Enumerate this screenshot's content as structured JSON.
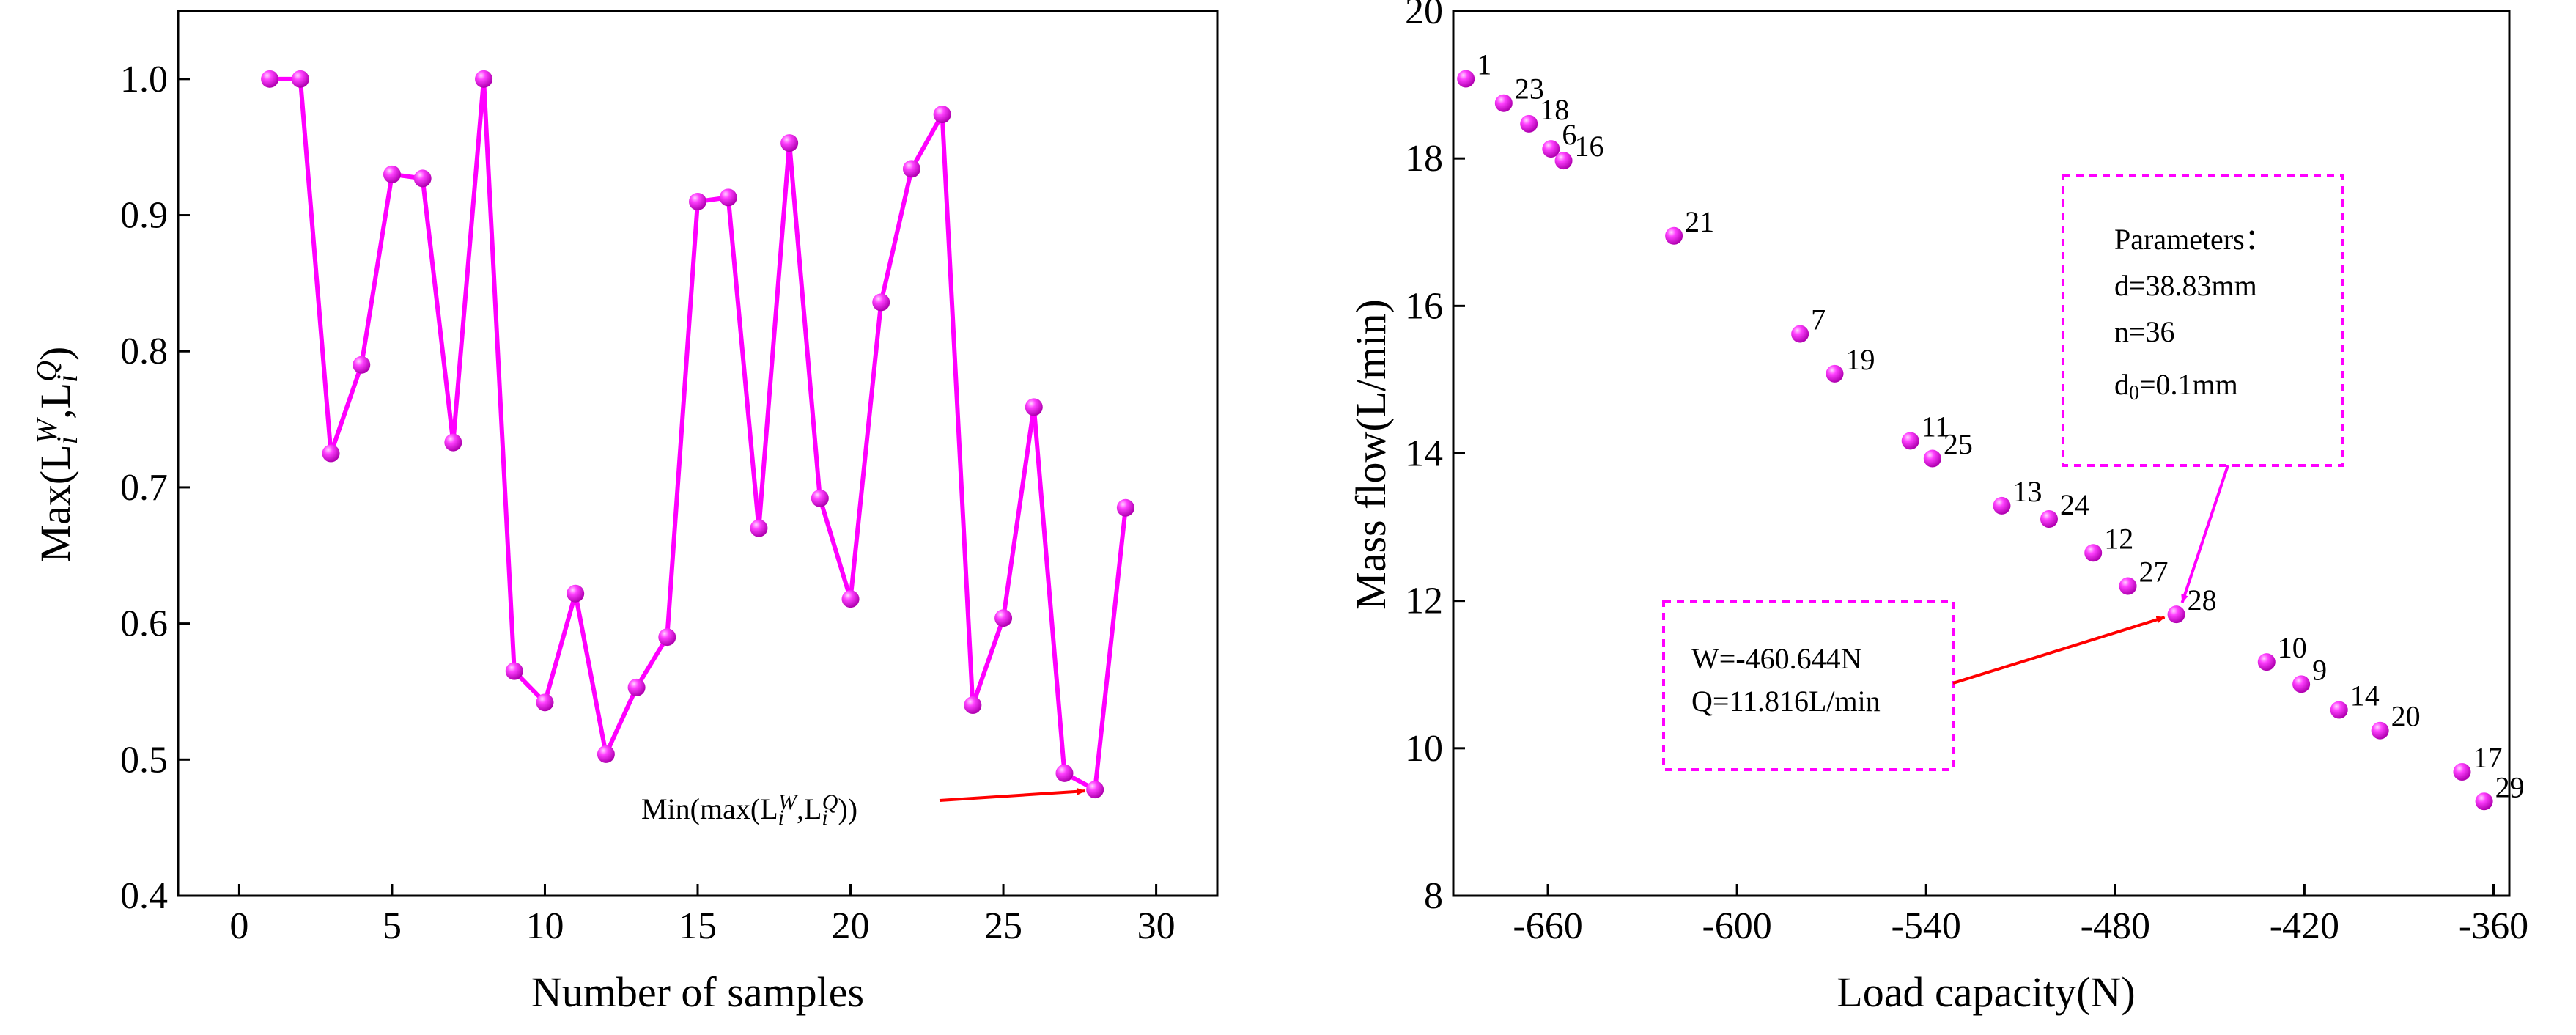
{
  "chart_data": [
    {
      "type": "line",
      "xlabel": "Number of samples",
      "ylabel": {
        "base": "Max(L",
        "sub1": "i",
        "sup1": "W",
        "mid": ",L",
        "sub2": "i",
        "sup2": "Q",
        "end": ")"
      },
      "xlim": [
        -2,
        32
      ],
      "ylim": [
        0.4,
        1.05
      ],
      "xticks": [
        0,
        5,
        10,
        15,
        20,
        25,
        30
      ],
      "yticks": [
        0.4,
        0.5,
        0.6,
        0.7,
        0.8,
        0.9,
        1.0
      ],
      "ytick_labels": [
        "0.4",
        "0.5",
        "0.6",
        "0.7",
        "0.8",
        "0.9",
        "1.0"
      ],
      "color": "#ff00ff",
      "series": [
        {
          "x": [
            1,
            2,
            3,
            4,
            5,
            6,
            7,
            8,
            9,
            10,
            11,
            12,
            13,
            14,
            15,
            16,
            17,
            18,
            19,
            20,
            21,
            22,
            23,
            24,
            25,
            26,
            27,
            28,
            29
          ],
          "y": [
            1.0,
            1.0,
            0.725,
            0.79,
            0.93,
            0.927,
            0.733,
            1.0,
            0.565,
            0.542,
            0.622,
            0.504,
            0.553,
            0.59,
            0.91,
            0.913,
            0.67,
            0.953,
            0.692,
            0.618,
            0.836,
            0.934,
            0.974,
            0.54,
            0.604,
            0.759,
            0.49,
            0.478,
            0.685
          ]
        }
      ],
      "annotation": {
        "text": {
          "base": "Min(max(L",
          "sub1": "i",
          "sup1": "W",
          "mid": ",L",
          "sub2": "i",
          "sup2": "Q",
          "end": "))"
        },
        "target": {
          "x": 28,
          "y": 0.478
        },
        "arrow_color": "#ff0000"
      }
    },
    {
      "type": "scatter",
      "xlabel": "Load capacity(N)",
      "ylabel": "Mass flow(L/min)",
      "xlim": [
        -690,
        -355
      ],
      "ylim": [
        8,
        20
      ],
      "xticks": [
        -660,
        -600,
        -540,
        -480,
        -420,
        -360
      ],
      "yticks": [
        8,
        10,
        12,
        14,
        16,
        18,
        20
      ],
      "color": "#ff00ff",
      "points": [
        {
          "label": "1",
          "x": -686,
          "y": 19.08
        },
        {
          "label": "23",
          "x": -674,
          "y": 18.75
        },
        {
          "label": "18",
          "x": -666,
          "y": 18.47
        },
        {
          "label": "6",
          "x": -659,
          "y": 18.13
        },
        {
          "label": "16",
          "x": -655,
          "y": 17.97
        },
        {
          "label": "21",
          "x": -620,
          "y": 16.95
        },
        {
          "label": "7",
          "x": -580,
          "y": 15.62
        },
        {
          "label": "19",
          "x": -569,
          "y": 15.08
        },
        {
          "label": "11",
          "x": -545,
          "y": 14.17
        },
        {
          "label": "25",
          "x": -538,
          "y": 13.93
        },
        {
          "label": "13",
          "x": -516,
          "y": 13.29
        },
        {
          "label": "24",
          "x": -501,
          "y": 13.11
        },
        {
          "label": "12",
          "x": -487,
          "y": 12.65
        },
        {
          "label": "27",
          "x": -476,
          "y": 12.2
        },
        {
          "label": "28",
          "x": -460.644,
          "y": 11.816
        },
        {
          "label": "10",
          "x": -432,
          "y": 11.17
        },
        {
          "label": "9",
          "x": -421,
          "y": 10.87
        },
        {
          "label": "14",
          "x": -409,
          "y": 10.52
        },
        {
          "label": "20",
          "x": -396,
          "y": 10.24
        },
        {
          "label": "17",
          "x": -370,
          "y": 9.68
        },
        {
          "label": "29",
          "x": -363,
          "y": 9.28
        }
      ],
      "annotations": [
        {
          "lines": [
            "Parameters：",
            "d=38.83mm",
            "n=36"
          ],
          "d0": {
            "base": "d",
            "sub": "0",
            "rest": "=0.1mm"
          },
          "arrow_to": {
            "x": -460.644,
            "y": 11.816
          },
          "border_color": "#ff00ff",
          "arrow_color": "#ff00ff"
        },
        {
          "lines": [
            "W=-460.644N",
            "Q=11.816L/min"
          ],
          "arrow_to": {
            "x": -460.644,
            "y": 11.816
          },
          "border_color": "#ff00ff",
          "arrow_color": "#ff0000"
        }
      ]
    }
  ]
}
